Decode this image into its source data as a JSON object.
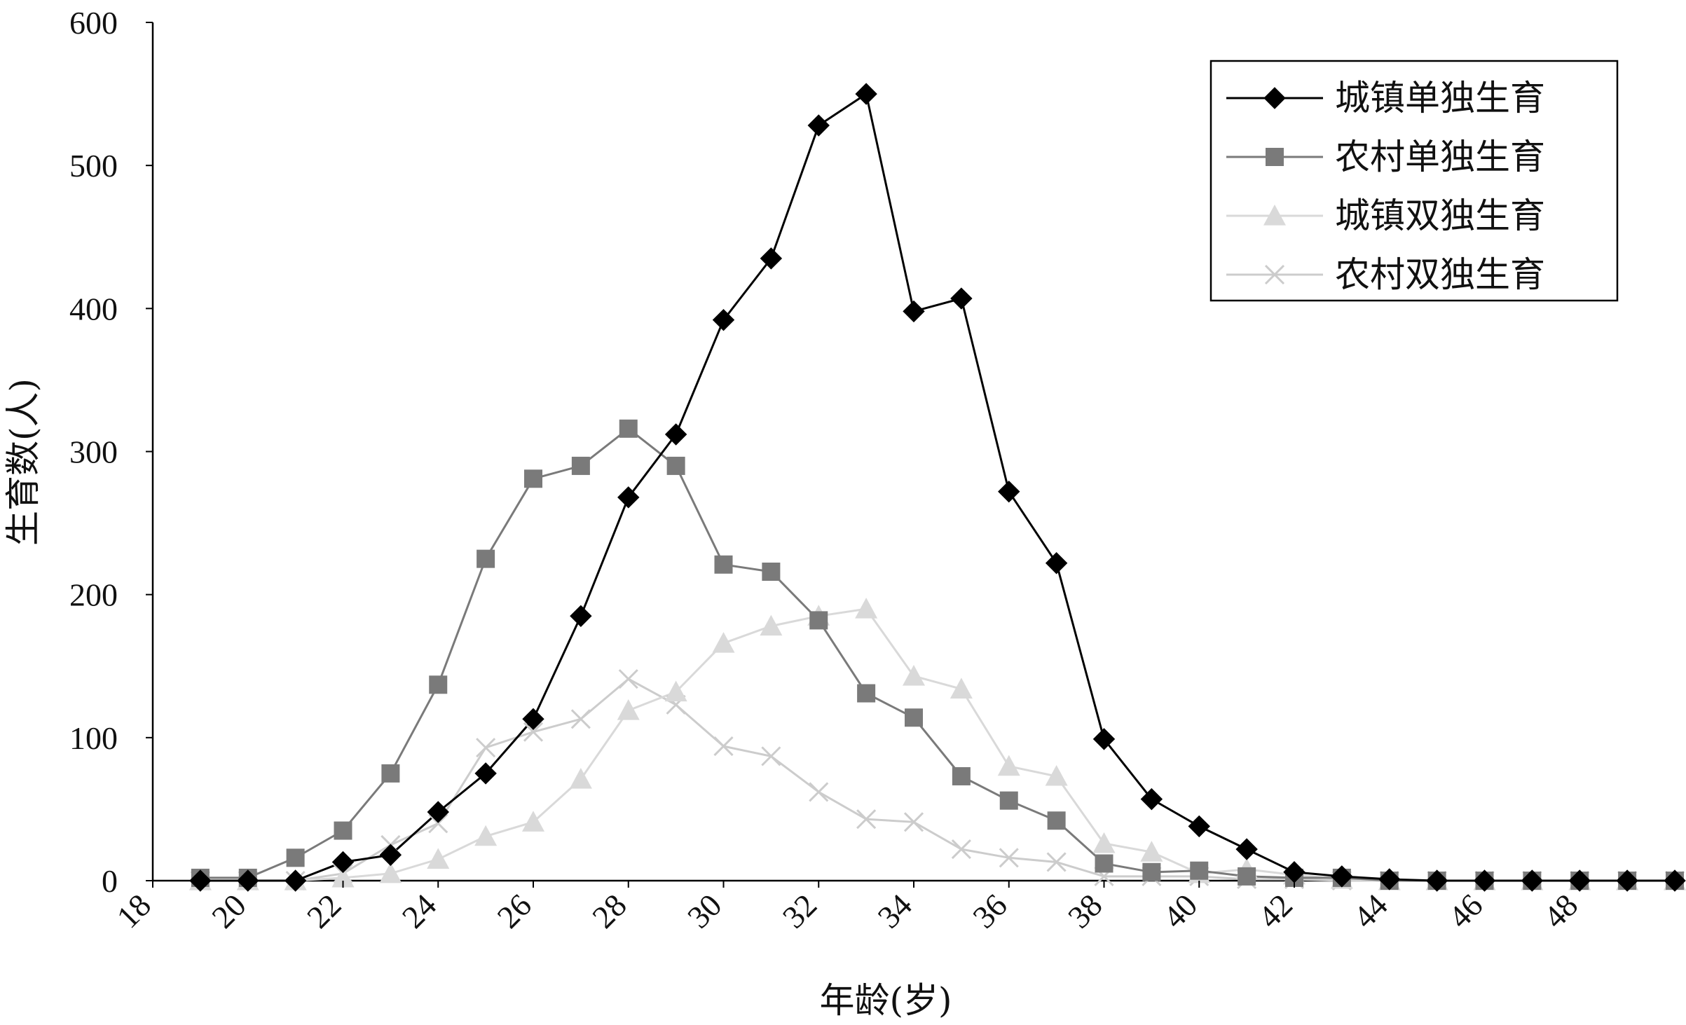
{
  "chart_data": {
    "type": "line",
    "title": "",
    "xlabel": "年龄(岁)",
    "ylabel": "生育数(人)",
    "xlim": [
      18,
      50
    ],
    "ylim": [
      0,
      600
    ],
    "x_ticks": [
      18,
      20,
      22,
      24,
      26,
      28,
      30,
      32,
      34,
      36,
      38,
      40,
      42,
      44,
      46,
      48
    ],
    "y_ticks": [
      0,
      100,
      200,
      300,
      400,
      500,
      600
    ],
    "grid": false,
    "legend_position": "top-right",
    "x": [
      19,
      20,
      21,
      22,
      23,
      24,
      25,
      26,
      27,
      28,
      29,
      30,
      31,
      32,
      33,
      34,
      35,
      36,
      37,
      38,
      39,
      40,
      41,
      42,
      43,
      44,
      45,
      46,
      47,
      48,
      49,
      50
    ],
    "series": [
      {
        "name": "城镇单独生育",
        "color": "#000000",
        "marker": "diamond",
        "values": [
          0,
          0,
          0,
          13,
          18,
          48,
          75,
          113,
          185,
          268,
          312,
          392,
          435,
          528,
          550,
          398,
          407,
          272,
          222,
          99,
          57,
          38,
          22,
          6,
          3,
          1,
          0,
          0,
          0,
          0,
          0,
          0
        ]
      },
      {
        "name": "农村单独生育",
        "color": "#7a7a7a",
        "marker": "square",
        "values": [
          2,
          2,
          16,
          35,
          75,
          137,
          225,
          281,
          290,
          316,
          290,
          221,
          216,
          182,
          131,
          114,
          73,
          56,
          42,
          12,
          6,
          7,
          3,
          2,
          2,
          0,
          0,
          0,
          0,
          0,
          0,
          0
        ]
      },
      {
        "name": "城镇双独生育",
        "color": "#d9d9d9",
        "marker": "triangle",
        "values": [
          0,
          0,
          0,
          2,
          5,
          15,
          31,
          41,
          71,
          119,
          132,
          166,
          178,
          185,
          190,
          143,
          134,
          80,
          73,
          26,
          20,
          5,
          8,
          4,
          1,
          0,
          0,
          0,
          0,
          0,
          0,
          0
        ]
      },
      {
        "name": "农村双独生育",
        "color": "#cccccc",
        "marker": "x",
        "values": [
          0,
          0,
          0,
          5,
          25,
          40,
          93,
          104,
          113,
          141,
          123,
          94,
          87,
          62,
          43,
          41,
          22,
          16,
          13,
          3,
          3,
          3,
          1,
          1,
          0,
          0,
          0,
          0,
          0,
          0,
          0,
          0
        ]
      }
    ]
  }
}
